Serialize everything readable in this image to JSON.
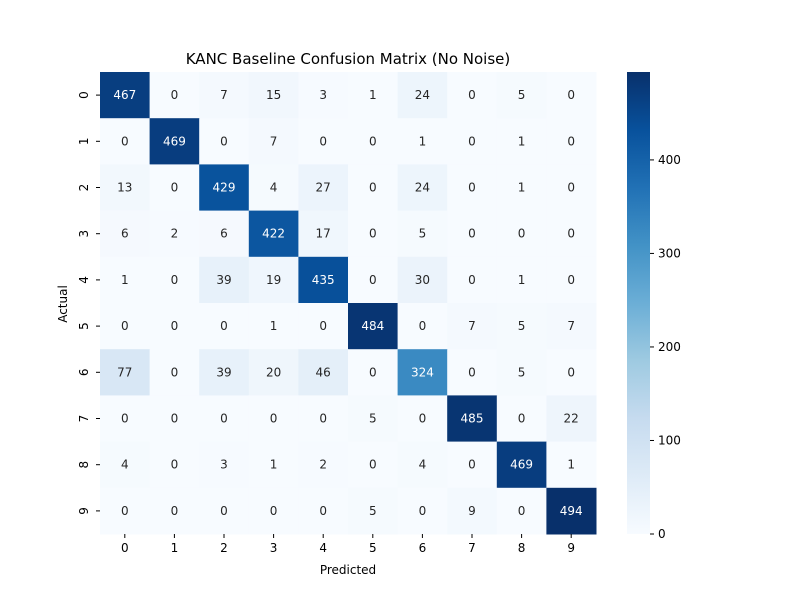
{
  "chart_data": {
    "type": "heatmap",
    "title": "KANC Baseline Confusion Matrix (No Noise)",
    "xlabel": "Predicted",
    "ylabel": "Actual",
    "x_categories": [
      "0",
      "1",
      "2",
      "3",
      "4",
      "5",
      "6",
      "7",
      "8",
      "9"
    ],
    "y_categories": [
      "0",
      "1",
      "2",
      "3",
      "4",
      "5",
      "6",
      "7",
      "8",
      "9"
    ],
    "values": [
      [
        467,
        0,
        7,
        15,
        3,
        1,
        24,
        0,
        5,
        0
      ],
      [
        0,
        469,
        0,
        7,
        0,
        0,
        1,
        0,
        1,
        0
      ],
      [
        13,
        0,
        429,
        4,
        27,
        0,
        24,
        0,
        1,
        0
      ],
      [
        6,
        2,
        6,
        422,
        17,
        0,
        5,
        0,
        0,
        0
      ],
      [
        1,
        0,
        39,
        19,
        435,
        0,
        30,
        0,
        1,
        0
      ],
      [
        0,
        0,
        0,
        1,
        0,
        484,
        0,
        7,
        5,
        7
      ],
      [
        77,
        0,
        39,
        20,
        46,
        0,
        324,
        0,
        5,
        0
      ],
      [
        0,
        0,
        0,
        0,
        0,
        5,
        0,
        485,
        0,
        22
      ],
      [
        4,
        0,
        3,
        1,
        2,
        0,
        4,
        0,
        469,
        1
      ],
      [
        0,
        0,
        0,
        0,
        0,
        5,
        0,
        9,
        0,
        494
      ]
    ],
    "colormap": "Blues",
    "vmin": 0,
    "vmax": 494,
    "colorbar_ticks": [
      0,
      100,
      200,
      300,
      400
    ],
    "grid": false
  }
}
